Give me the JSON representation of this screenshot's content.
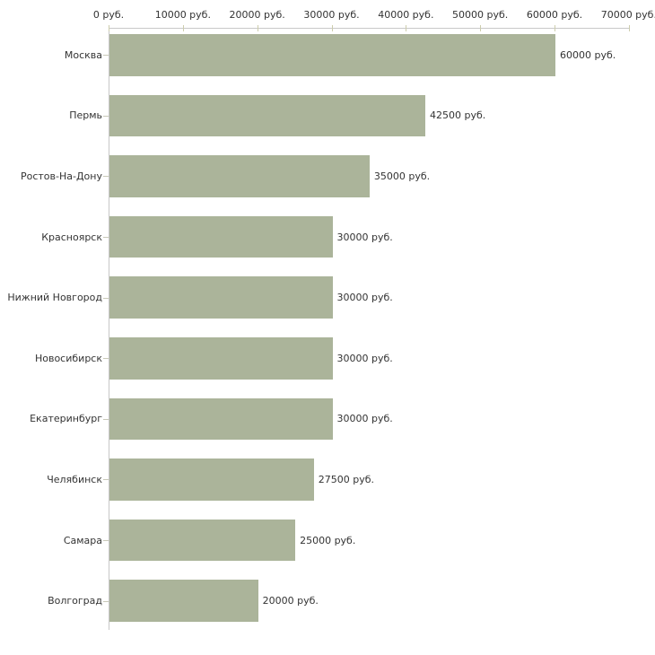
{
  "chart_data": {
    "type": "bar",
    "orientation": "horizontal",
    "title": "",
    "xlabel": "",
    "ylabel": "",
    "unit_suffix": " руб.",
    "categories": [
      "Москва",
      "Пермь",
      "Ростов-На-Дону",
      "Красноярск",
      "Нижний Новгород",
      "Новосибирск",
      "Екатеринбург",
      "Челябинск",
      "Самара",
      "Волгоград"
    ],
    "values": [
      60000,
      42500,
      35000,
      30000,
      30000,
      30000,
      30000,
      27500,
      25000,
      20000
    ],
    "value_labels": [
      "60000 руб.",
      "42500 руб.",
      "35000 руб.",
      "30000 руб.",
      "30000 руб.",
      "30000 руб.",
      "30000 руб.",
      "27500 руб.",
      "25000 руб.",
      "20000 руб."
    ],
    "xlim": [
      0,
      70000
    ],
    "x_ticks": [
      0,
      10000,
      20000,
      30000,
      40000,
      50000,
      60000,
      70000
    ],
    "x_tick_labels": [
      "0 руб.",
      "10000 руб.",
      "20000 руб.",
      "30000 руб.",
      "40000 руб.",
      "50000 руб.",
      "60000 руб.",
      "70000 руб."
    ],
    "grid": false,
    "legend": false,
    "colors": {
      "bar": "#abb49a",
      "axis_line": "#c8c8c8",
      "axis_tick": "#cdcdad",
      "category_tick": "#c8c8b8",
      "text": "#333333",
      "background": "#ffffff"
    }
  }
}
